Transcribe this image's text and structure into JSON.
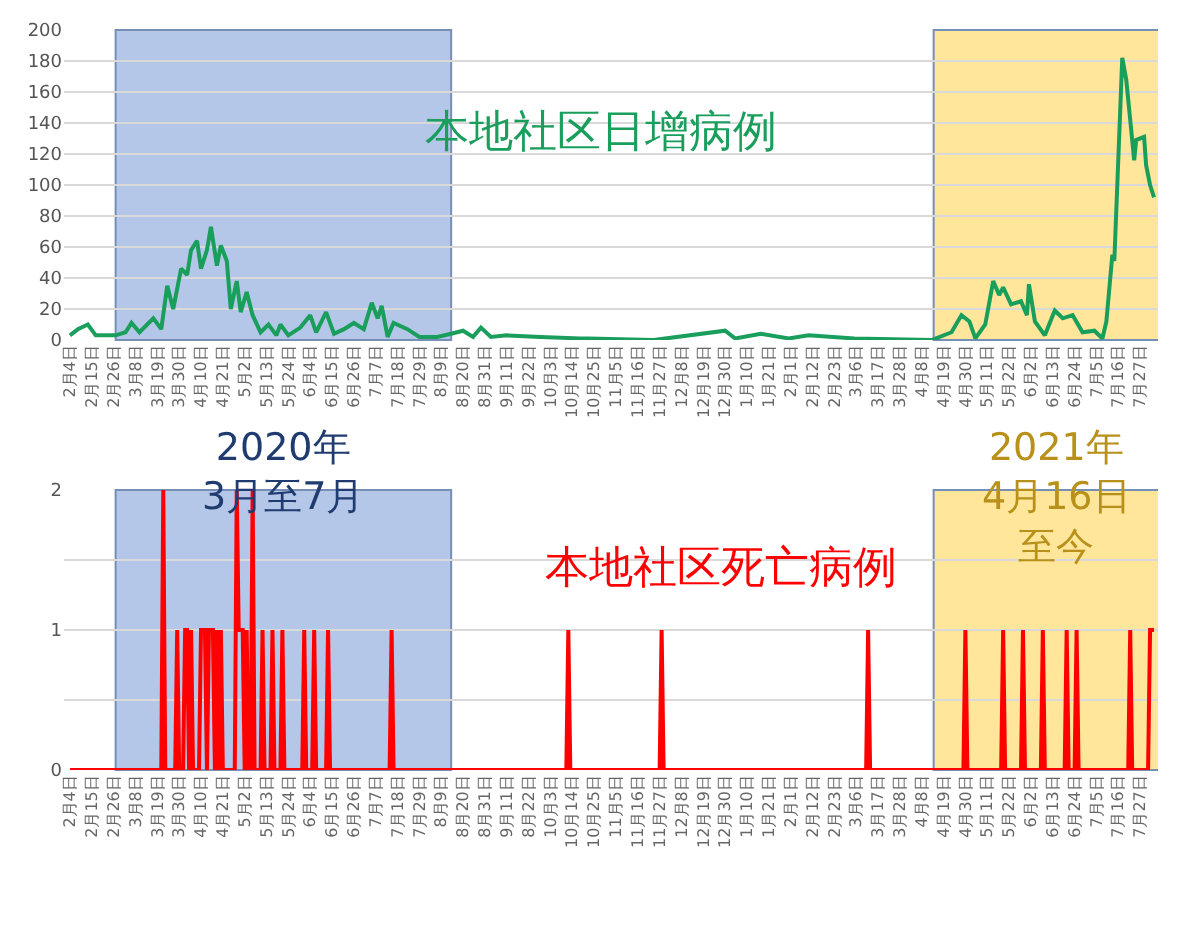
{
  "chart_data": [
    {
      "type": "line",
      "title": "本地社区日增病例",
      "color": "#1a9e5c",
      "grid": "y",
      "x": [
        "2020-02-04",
        "2020-02-08",
        "2020-02-13",
        "2020-02-17",
        "2020-02-27",
        "2020-03-03",
        "2020-03-06",
        "2020-03-10",
        "2020-03-17",
        "2020-03-21",
        "2020-03-24",
        "2020-03-27",
        "2020-03-31",
        "2020-04-03",
        "2020-04-05",
        "2020-04-08",
        "2020-04-10",
        "2020-04-13",
        "2020-04-15",
        "2020-04-18",
        "2020-04-20",
        "2020-04-23",
        "2020-04-25",
        "2020-04-28",
        "2020-04-30",
        "2020-05-03",
        "2020-05-06",
        "2020-05-10",
        "2020-05-14",
        "2020-05-18",
        "2020-05-20",
        "2020-05-24",
        "2020-05-30",
        "2020-06-04",
        "2020-06-07",
        "2020-06-12",
        "2020-06-16",
        "2020-06-21",
        "2020-06-26",
        "2020-07-01",
        "2020-07-05",
        "2020-07-08",
        "2020-07-10",
        "2020-07-13",
        "2020-07-16",
        "2020-07-23",
        "2020-07-29",
        "2020-08-07",
        "2020-08-14",
        "2020-08-20",
        "2020-08-25",
        "2020-08-29",
        "2020-09-03",
        "2020-09-11",
        "2020-09-28",
        "2020-10-18",
        "2020-10-22",
        "2020-11-24",
        "2020-12-30",
        "2021-01-04",
        "2021-01-17",
        "2021-01-31",
        "2021-02-10",
        "2021-03-05",
        "2021-04-13",
        "2021-04-23",
        "2021-04-28",
        "2021-05-02",
        "2021-05-05",
        "2021-05-10",
        "2021-05-14",
        "2021-05-17",
        "2021-05-19",
        "2021-05-23",
        "2021-05-28",
        "2021-05-31",
        "2021-06-01",
        "2021-06-04",
        "2021-06-09",
        "2021-06-14",
        "2021-06-18",
        "2021-06-23",
        "2021-06-28",
        "2021-07-04",
        "2021-07-08",
        "2021-07-10",
        "2021-07-13",
        "2021-07-14",
        "2021-07-18",
        "2021-07-20",
        "2021-07-24",
        "2021-07-25",
        "2021-07-29",
        "2021-07-30",
        "2021-08-01",
        "2021-08-03"
      ],
      "values": [
        3,
        7,
        10,
        3,
        3,
        5,
        11,
        5,
        14,
        7,
        35,
        20,
        46,
        42,
        58,
        64,
        46,
        58,
        73,
        48,
        61,
        51,
        20,
        38,
        18,
        31,
        16,
        5,
        10,
        3,
        10,
        3,
        8,
        16,
        5,
        18,
        4,
        7,
        11,
        7,
        24,
        14,
        22,
        2,
        11,
        7,
        2,
        2,
        4,
        6,
        2,
        8,
        2,
        3,
        2,
        1,
        1,
        0,
        6,
        1,
        4,
        1,
        3,
        1,
        0,
        5,
        16,
        12,
        1,
        10,
        38,
        29,
        34,
        23,
        25,
        16,
        36,
        12,
        3,
        19,
        14,
        16,
        5,
        6,
        1,
        12,
        55,
        51,
        182,
        168,
        116,
        129,
        131,
        113,
        100,
        92
      ],
      "xlim": [
        "2020-02-01",
        "2021-08-05"
      ],
      "ylim": [
        0,
        200
      ],
      "yticks": [
        0,
        20,
        40,
        60,
        80,
        100,
        120,
        140,
        160,
        180,
        200
      ],
      "xticks": [
        {
          "value": "2020-02-04",
          "label": "2月4日"
        },
        {
          "value": "2020-02-15",
          "label": "2月15日"
        },
        {
          "value": "2020-02-26",
          "label": "2月26日"
        },
        {
          "value": "2020-03-08",
          "label": "3月8日"
        },
        {
          "value": "2020-03-19",
          "label": "3月19日"
        },
        {
          "value": "2020-03-30",
          "label": "3月30日"
        },
        {
          "value": "2020-04-10",
          "label": "4月10日"
        },
        {
          "value": "2020-04-21",
          "label": "4月21日"
        },
        {
          "value": "2020-05-02",
          "label": "5月2日"
        },
        {
          "value": "2020-05-13",
          "label": "5月13日"
        },
        {
          "value": "2020-05-24",
          "label": "5月24日"
        },
        {
          "value": "2020-06-04",
          "label": "6月4日"
        },
        {
          "value": "2020-06-15",
          "label": "6月15日"
        },
        {
          "value": "2020-06-26",
          "label": "6月26日"
        },
        {
          "value": "2020-07-07",
          "label": "7月7日"
        },
        {
          "value": "2020-07-18",
          "label": "7月18日"
        },
        {
          "value": "2020-07-29",
          "label": "7月29日"
        },
        {
          "value": "2020-08-09",
          "label": "8月9日"
        },
        {
          "value": "2020-08-20",
          "label": "8月20日"
        },
        {
          "value": "2020-08-31",
          "label": "8月31日"
        },
        {
          "value": "2020-09-11",
          "label": "9月11日"
        },
        {
          "value": "2020-09-22",
          "label": "9月22日"
        },
        {
          "value": "2020-10-03",
          "label": "10月3日"
        },
        {
          "value": "2020-10-14",
          "label": "10月14日"
        },
        {
          "value": "2020-10-25",
          "label": "10月25日"
        },
        {
          "value": "2020-11-05",
          "label": "11月5日"
        },
        {
          "value": "2020-11-16",
          "label": "11月16日"
        },
        {
          "value": "2020-11-27",
          "label": "11月27日"
        },
        {
          "value": "2020-12-08",
          "label": "12月8日"
        },
        {
          "value": "2020-12-19",
          "label": "12月19日"
        },
        {
          "value": "2020-12-30",
          "label": "12月30日"
        },
        {
          "value": "2021-01-10",
          "label": "1月10日"
        },
        {
          "value": "2021-01-21",
          "label": "1月21日"
        },
        {
          "value": "2021-02-01",
          "label": "2月1日"
        },
        {
          "value": "2021-02-12",
          "label": "2月12日"
        },
        {
          "value": "2021-02-23",
          "label": "2月23日"
        },
        {
          "value": "2021-03-06",
          "label": "3月6日"
        },
        {
          "value": "2021-03-17",
          "label": "3月17日"
        },
        {
          "value": "2021-03-28",
          "label": "3月28日"
        },
        {
          "value": "2021-04-08",
          "label": "4月8日"
        },
        {
          "value": "2021-04-19",
          "label": "4月19日"
        },
        {
          "value": "2021-04-30",
          "label": "4月30日"
        },
        {
          "value": "2021-05-11",
          "label": "5月11日"
        },
        {
          "value": "2021-05-22",
          "label": "5月22日"
        },
        {
          "value": "2021-06-02",
          "label": "6月2日"
        },
        {
          "value": "2021-06-13",
          "label": "6月13日"
        },
        {
          "value": "2021-06-24",
          "label": "6月24日"
        },
        {
          "value": "2021-07-05",
          "label": "7月5日"
        },
        {
          "value": "2021-07-16",
          "label": "7月16日"
        },
        {
          "value": "2021-07-27",
          "label": "7月27日"
        }
      ],
      "bands": [
        {
          "axis": "x",
          "from": "2020-02-27",
          "to": "2020-08-14",
          "color": "#8faadc"
        },
        {
          "axis": "x",
          "from": "2021-04-14",
          "to": "2021-08-16",
          "color": "#ffd966"
        }
      ]
    },
    {
      "type": "line",
      "title": "本地社区死亡病例",
      "color": "#ff0000",
      "grid": "y",
      "x": [
        "2020-02-04",
        "2020-03-20",
        "2020-03-21",
        "2020-03-22",
        "2020-03-23",
        "2020-03-28",
        "2020-03-29",
        "2020-03-30",
        "2020-04-01",
        "2020-04-02",
        "2020-04-03",
        "2020-04-04",
        "2020-04-05",
        "2020-04-06",
        "2020-04-09",
        "2020-04-10",
        "2020-04-11",
        "2020-04-12",
        "2020-04-13",
        "2020-04-14",
        "2020-04-15",
        "2020-04-16",
        "2020-04-17",
        "2020-04-18",
        "2020-04-19",
        "2020-04-20",
        "2020-04-21",
        "2020-04-27",
        "2020-04-28",
        "2020-04-29",
        "2020-04-30",
        "2020-05-01",
        "2020-05-02",
        "2020-05-03",
        "2020-05-04",
        "2020-05-05",
        "2020-05-06",
        "2020-05-07",
        "2020-05-10",
        "2020-05-11",
        "2020-05-12",
        "2020-05-15",
        "2020-05-16",
        "2020-05-17",
        "2020-05-20",
        "2020-05-21",
        "2020-05-22",
        "2020-05-31",
        "2020-06-01",
        "2020-06-02",
        "2020-06-05",
        "2020-06-06",
        "2020-06-07",
        "2020-06-12",
        "2020-06-13",
        "2020-06-14",
        "2020-07-14",
        "2020-07-15",
        "2020-07-16",
        "2020-10-11",
        "2020-10-12",
        "2020-10-13",
        "2020-11-27",
        "2020-11-28",
        "2020-11-29",
        "2021-03-11",
        "2021-03-12",
        "2021-03-13",
        "2021-04-29",
        "2021-04-30",
        "2021-05-01",
        "2021-05-18",
        "2021-05-19",
        "2021-05-20",
        "2021-05-28",
        "2021-05-29",
        "2021-05-30",
        "2021-06-07",
        "2021-06-08",
        "2021-06-09",
        "2021-06-19",
        "2021-06-20",
        "2021-06-21",
        "2021-06-24",
        "2021-06-25",
        "2021-06-26",
        "2021-07-21",
        "2021-07-22",
        "2021-07-23",
        "2021-07-31",
        "2021-08-01",
        "2021-08-02",
        "2021-08-03"
      ],
      "values": [
        0,
        0,
        0,
        2,
        0,
        0,
        1,
        0,
        0,
        1,
        1,
        0,
        1,
        0,
        0,
        1,
        1,
        1,
        0,
        1,
        1,
        1,
        0,
        1,
        0,
        1,
        0,
        0,
        2,
        1,
        1,
        1,
        0,
        1,
        0,
        0,
        2,
        0,
        0,
        1,
        0,
        0,
        1,
        0,
        0,
        1,
        0,
        0,
        1,
        0,
        0,
        1,
        0,
        0,
        1,
        0,
        0,
        1,
        0,
        0,
        1,
        0,
        0,
        1,
        0,
        0,
        1,
        0,
        0,
        1,
        0,
        0,
        1,
        0,
        0,
        1,
        0,
        0,
        1,
        0,
        0,
        1,
        0,
        0,
        1,
        0,
        0,
        1,
        0,
        0,
        1,
        1,
        1
      ],
      "xlim": [
        "2020-02-01",
        "2021-08-05"
      ],
      "ylim": [
        0,
        2
      ],
      "yticks": [
        0,
        {
          "value": 0.5,
          "label": null
        },
        1,
        {
          "value": 1.5,
          "label": null
        },
        2
      ],
      "xticks": [
        {
          "value": "2020-02-04",
          "label": "2月4日"
        },
        {
          "value": "2020-02-15",
          "label": "2月15日"
        },
        {
          "value": "2020-02-26",
          "label": "2月26日"
        },
        {
          "value": "2020-03-08",
          "label": "3月8日"
        },
        {
          "value": "2020-03-19",
          "label": "3月19日"
        },
        {
          "value": "2020-03-30",
          "label": "3月30日"
        },
        {
          "value": "2020-04-10",
          "label": "4月10日"
        },
        {
          "value": "2020-04-21",
          "label": "4月21日"
        },
        {
          "value": "2020-05-02",
          "label": "5月2日"
        },
        {
          "value": "2020-05-13",
          "label": "5月13日"
        },
        {
          "value": "2020-05-24",
          "label": "5月24日"
        },
        {
          "value": "2020-06-04",
          "label": "6月4日"
        },
        {
          "value": "2020-06-15",
          "label": "6月15日"
        },
        {
          "value": "2020-06-26",
          "label": "6月26日"
        },
        {
          "value": "2020-07-07",
          "label": "7月7日"
        },
        {
          "value": "2020-07-18",
          "label": "7月18日"
        },
        {
          "value": "2020-07-29",
          "label": "7月29日"
        },
        {
          "value": "2020-08-09",
          "label": "8月9日"
        },
        {
          "value": "2020-08-20",
          "label": "8月20日"
        },
        {
          "value": "2020-08-31",
          "label": "8月31日"
        },
        {
          "value": "2020-09-11",
          "label": "9月11日"
        },
        {
          "value": "2020-09-22",
          "label": "8月22日"
        },
        {
          "value": "2020-10-03",
          "label": "10月3日"
        },
        {
          "value": "2020-10-14",
          "label": "10月14日"
        },
        {
          "value": "2020-10-25",
          "label": "10月25日"
        },
        {
          "value": "2020-11-05",
          "label": "11月5日"
        },
        {
          "value": "2020-11-16",
          "label": "11月16日"
        },
        {
          "value": "2020-11-27",
          "label": "11月27日"
        },
        {
          "value": "2020-12-08",
          "label": "12月8日"
        },
        {
          "value": "2020-12-19",
          "label": "12月19日"
        },
        {
          "value": "2020-12-30",
          "label": "12月30日"
        },
        {
          "value": "2021-01-10",
          "label": "1月10日"
        },
        {
          "value": "2021-01-21",
          "label": "1月21日"
        },
        {
          "value": "2021-02-01",
          "label": "2月1日"
        },
        {
          "value": "2021-02-12",
          "label": "2月12日"
        },
        {
          "value": "2021-02-23",
          "label": "2月23日"
        },
        {
          "value": "2021-03-06",
          "label": "3月6日"
        },
        {
          "value": "2021-03-17",
          "label": "3月17日"
        },
        {
          "value": "2021-03-28",
          "label": "3月28日"
        },
        {
          "value": "2021-04-08",
          "label": "4月8日"
        },
        {
          "value": "2021-04-19",
          "label": "4月19日"
        },
        {
          "value": "2021-04-30",
          "label": "4月30日"
        },
        {
          "value": "2021-05-11",
          "label": "5月11日"
        },
        {
          "value": "2021-05-22",
          "label": "5月22日"
        },
        {
          "value": "2021-06-02",
          "label": "6月2日"
        },
        {
          "value": "2021-06-13",
          "label": "6月13日"
        },
        {
          "value": "2021-06-24",
          "label": "6月24日"
        },
        {
          "value": "2021-07-05",
          "label": "7月5日"
        },
        {
          "value": "2021-07-16",
          "label": "7月16日"
        },
        {
          "value": "2021-07-27",
          "label": "7月27日"
        }
      ],
      "bands": [
        {
          "axis": "x",
          "from": "2020-02-27",
          "to": "2020-08-14",
          "color": "#8faadc",
          "label": "2020年3月至7月"
        },
        {
          "axis": "x",
          "from": "2021-04-14",
          "to": "2021-08-16",
          "color": "#ffd966",
          "label": "2021年4月16日至今"
        }
      ]
    }
  ]
}
